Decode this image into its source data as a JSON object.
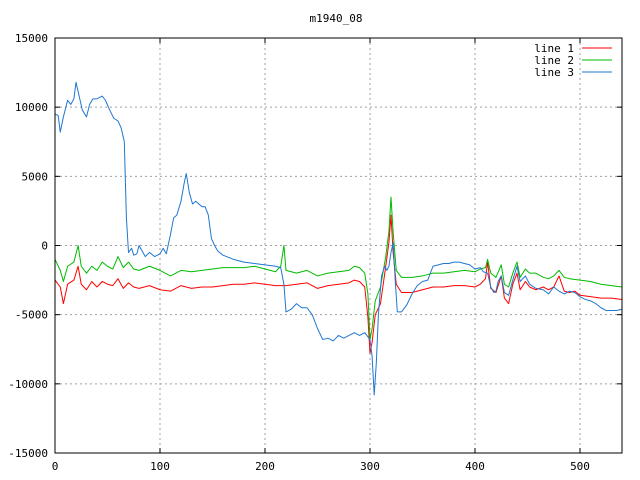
{
  "chart_data": {
    "type": "line",
    "title": "m1940_08",
    "xlabel": "",
    "ylabel": "",
    "xlim": [
      0,
      540
    ],
    "ylim": [
      -15000,
      15000
    ],
    "xticks": [
      0,
      100,
      200,
      300,
      400,
      500
    ],
    "yticks": [
      -15000,
      -10000,
      -5000,
      0,
      5000,
      10000,
      15000
    ],
    "grid": true,
    "legend_position": "top-right",
    "series": [
      {
        "name": "line 1",
        "color": "#ff0000",
        "points": [
          [
            0,
            -2500
          ],
          [
            5,
            -3000
          ],
          [
            8,
            -4200
          ],
          [
            12,
            -2800
          ],
          [
            18,
            -2500
          ],
          [
            22,
            -1500
          ],
          [
            25,
            -2800
          ],
          [
            30,
            -3200
          ],
          [
            35,
            -2600
          ],
          [
            40,
            -3000
          ],
          [
            45,
            -2600
          ],
          [
            50,
            -2800
          ],
          [
            55,
            -2900
          ],
          [
            60,
            -2400
          ],
          [
            65,
            -3100
          ],
          [
            70,
            -2700
          ],
          [
            75,
            -3000
          ],
          [
            80,
            -3100
          ],
          [
            90,
            -2900
          ],
          [
            100,
            -3200
          ],
          [
            110,
            -3300
          ],
          [
            120,
            -2900
          ],
          [
            130,
            -3100
          ],
          [
            140,
            -3000
          ],
          [
            150,
            -3000
          ],
          [
            160,
            -2900
          ],
          [
            170,
            -2800
          ],
          [
            180,
            -2800
          ],
          [
            190,
            -2700
          ],
          [
            200,
            -2800
          ],
          [
            210,
            -2900
          ],
          [
            220,
            -2900
          ],
          [
            230,
            -2800
          ],
          [
            240,
            -2700
          ],
          [
            250,
            -3100
          ],
          [
            260,
            -2900
          ],
          [
            270,
            -2800
          ],
          [
            280,
            -2700
          ],
          [
            285,
            -2500
          ],
          [
            290,
            -2600
          ],
          [
            295,
            -3000
          ],
          [
            298,
            -5200
          ],
          [
            300,
            -7800
          ],
          [
            302,
            -7000
          ],
          [
            305,
            -5000
          ],
          [
            310,
            -4200
          ],
          [
            315,
            -1500
          ],
          [
            318,
            200
          ],
          [
            320,
            2200
          ],
          [
            322,
            -500
          ],
          [
            325,
            -2800
          ],
          [
            330,
            -3400
          ],
          [
            340,
            -3400
          ],
          [
            350,
            -3200
          ],
          [
            360,
            -3000
          ],
          [
            370,
            -3000
          ],
          [
            380,
            -2900
          ],
          [
            390,
            -2900
          ],
          [
            400,
            -3000
          ],
          [
            405,
            -2800
          ],
          [
            410,
            -2400
          ],
          [
            412,
            -1200
          ],
          [
            415,
            -3100
          ],
          [
            420,
            -3400
          ],
          [
            425,
            -2200
          ],
          [
            428,
            -3800
          ],
          [
            432,
            -4200
          ],
          [
            436,
            -2800
          ],
          [
            440,
            -2000
          ],
          [
            443,
            -3200
          ],
          [
            448,
            -2600
          ],
          [
            452,
            -3000
          ],
          [
            458,
            -3200
          ],
          [
            465,
            -3000
          ],
          [
            470,
            -3200
          ],
          [
            475,
            -3000
          ],
          [
            480,
            -2200
          ],
          [
            485,
            -3300
          ],
          [
            490,
            -3400
          ],
          [
            495,
            -3300
          ],
          [
            500,
            -3600
          ],
          [
            510,
            -3700
          ],
          [
            520,
            -3800
          ],
          [
            530,
            -3800
          ],
          [
            540,
            -3900
          ]
        ]
      },
      {
        "name": "line 2",
        "color": "#00bb00",
        "points": [
          [
            0,
            -1000
          ],
          [
            5,
            -1800
          ],
          [
            8,
            -2600
          ],
          [
            12,
            -1500
          ],
          [
            18,
            -1200
          ],
          [
            22,
            0
          ],
          [
            25,
            -1500
          ],
          [
            30,
            -2000
          ],
          [
            35,
            -1500
          ],
          [
            40,
            -1800
          ],
          [
            45,
            -1200
          ],
          [
            50,
            -1500
          ],
          [
            55,
            -1700
          ],
          [
            60,
            -800
          ],
          [
            65,
            -1600
          ],
          [
            70,
            -1200
          ],
          [
            75,
            -1700
          ],
          [
            80,
            -1800
          ],
          [
            90,
            -1500
          ],
          [
            100,
            -1800
          ],
          [
            110,
            -2200
          ],
          [
            120,
            -1800
          ],
          [
            130,
            -1900
          ],
          [
            140,
            -1800
          ],
          [
            150,
            -1700
          ],
          [
            160,
            -1600
          ],
          [
            170,
            -1600
          ],
          [
            180,
            -1600
          ],
          [
            190,
            -1500
          ],
          [
            200,
            -1700
          ],
          [
            210,
            -1900
          ],
          [
            215,
            -1500
          ],
          [
            218,
            0
          ],
          [
            220,
            -1800
          ],
          [
            230,
            -2000
          ],
          [
            240,
            -1800
          ],
          [
            250,
            -2200
          ],
          [
            260,
            -2000
          ],
          [
            270,
            -1900
          ],
          [
            280,
            -1800
          ],
          [
            285,
            -1500
          ],
          [
            290,
            -1600
          ],
          [
            295,
            -2000
          ],
          [
            298,
            -3500
          ],
          [
            300,
            -6800
          ],
          [
            302,
            -6000
          ],
          [
            305,
            -4000
          ],
          [
            310,
            -3000
          ],
          [
            315,
            -800
          ],
          [
            318,
            1000
          ],
          [
            320,
            3500
          ],
          [
            322,
            1000
          ],
          [
            325,
            -1800
          ],
          [
            330,
            -2300
          ],
          [
            340,
            -2300
          ],
          [
            350,
            -2200
          ],
          [
            360,
            -2000
          ],
          [
            370,
            -2000
          ],
          [
            380,
            -1900
          ],
          [
            390,
            -1800
          ],
          [
            400,
            -1900
          ],
          [
            405,
            -1700
          ],
          [
            410,
            -1600
          ],
          [
            412,
            -1000
          ],
          [
            415,
            -2000
          ],
          [
            420,
            -2300
          ],
          [
            425,
            -1400
          ],
          [
            428,
            -2800
          ],
          [
            432,
            -3000
          ],
          [
            436,
            -2000
          ],
          [
            440,
            -1200
          ],
          [
            443,
            -2300
          ],
          [
            448,
            -1700
          ],
          [
            452,
            -2000
          ],
          [
            458,
            -2000
          ],
          [
            465,
            -2300
          ],
          [
            470,
            -2400
          ],
          [
            475,
            -2200
          ],
          [
            480,
            -1800
          ],
          [
            485,
            -2300
          ],
          [
            490,
            -2400
          ],
          [
            500,
            -2500
          ],
          [
            510,
            -2600
          ],
          [
            520,
            -2800
          ],
          [
            530,
            -2900
          ],
          [
            540,
            -3000
          ]
        ]
      },
      {
        "name": "line 3",
        "color": "#1f77d0",
        "points": [
          [
            0,
            9500
          ],
          [
            3,
            9400
          ],
          [
            5,
            8200
          ],
          [
            8,
            9300
          ],
          [
            12,
            10500
          ],
          [
            15,
            10200
          ],
          [
            18,
            10600
          ],
          [
            20,
            11800
          ],
          [
            23,
            10800
          ],
          [
            26,
            9800
          ],
          [
            30,
            9300
          ],
          [
            33,
            10200
          ],
          [
            36,
            10600
          ],
          [
            40,
            10600
          ],
          [
            45,
            10800
          ],
          [
            48,
            10500
          ],
          [
            52,
            9800
          ],
          [
            56,
            9200
          ],
          [
            60,
            9000
          ],
          [
            63,
            8500
          ],
          [
            66,
            7500
          ],
          [
            68,
            2000
          ],
          [
            70,
            -500
          ],
          [
            73,
            -200
          ],
          [
            75,
            -700
          ],
          [
            78,
            -600
          ],
          [
            80,
            0
          ],
          [
            83,
            -400
          ],
          [
            86,
            -800
          ],
          [
            90,
            -500
          ],
          [
            95,
            -800
          ],
          [
            100,
            -600
          ],
          [
            103,
            -200
          ],
          [
            106,
            -600
          ],
          [
            110,
            800
          ],
          [
            113,
            2000
          ],
          [
            116,
            2200
          ],
          [
            120,
            3200
          ],
          [
            123,
            4500
          ],
          [
            125,
            5200
          ],
          [
            128,
            3800
          ],
          [
            131,
            3000
          ],
          [
            134,
            3200
          ],
          [
            137,
            3000
          ],
          [
            140,
            2800
          ],
          [
            143,
            2800
          ],
          [
            146,
            2200
          ],
          [
            149,
            500
          ],
          [
            152,
            0
          ],
          [
            155,
            -400
          ],
          [
            160,
            -700
          ],
          [
            170,
            -1000
          ],
          [
            180,
            -1200
          ],
          [
            190,
            -1300
          ],
          [
            200,
            -1400
          ],
          [
            210,
            -1500
          ],
          [
            215,
            -1600
          ],
          [
            218,
            -2800
          ],
          [
            220,
            -4800
          ],
          [
            225,
            -4600
          ],
          [
            230,
            -4200
          ],
          [
            235,
            -4500
          ],
          [
            240,
            -4500
          ],
          [
            245,
            -5000
          ],
          [
            250,
            -6000
          ],
          [
            255,
            -6800
          ],
          [
            260,
            -6700
          ],
          [
            265,
            -6900
          ],
          [
            270,
            -6500
          ],
          [
            275,
            -6700
          ],
          [
            280,
            -6500
          ],
          [
            285,
            -6300
          ],
          [
            290,
            -6500
          ],
          [
            295,
            -6300
          ],
          [
            300,
            -6800
          ],
          [
            302,
            -8000
          ],
          [
            304,
            -10800
          ],
          [
            306,
            -8500
          ],
          [
            308,
            -5000
          ],
          [
            311,
            -2200
          ],
          [
            314,
            -1500
          ],
          [
            316,
            -1800
          ],
          [
            318,
            -1500
          ],
          [
            320,
            -500
          ],
          [
            322,
            200
          ],
          [
            324,
            -2500
          ],
          [
            326,
            -4800
          ],
          [
            330,
            -4800
          ],
          [
            335,
            -4300
          ],
          [
            340,
            -3500
          ],
          [
            345,
            -2900
          ],
          [
            350,
            -2600
          ],
          [
            355,
            -2500
          ],
          [
            360,
            -1500
          ],
          [
            365,
            -1400
          ],
          [
            370,
            -1300
          ],
          [
            375,
            -1300
          ],
          [
            380,
            -1200
          ],
          [
            385,
            -1200
          ],
          [
            390,
            -1300
          ],
          [
            395,
            -1400
          ],
          [
            400,
            -1700
          ],
          [
            405,
            -1600
          ],
          [
            408,
            -1900
          ],
          [
            412,
            -2000
          ],
          [
            415,
            -3000
          ],
          [
            418,
            -3400
          ],
          [
            420,
            -3300
          ],
          [
            422,
            -2600
          ],
          [
            425,
            -2200
          ],
          [
            428,
            -3400
          ],
          [
            432,
            -3600
          ],
          [
            436,
            -2500
          ],
          [
            440,
            -1500
          ],
          [
            443,
            -2600
          ],
          [
            448,
            -2200
          ],
          [
            452,
            -2800
          ],
          [
            458,
            -3100
          ],
          [
            465,
            -3200
          ],
          [
            470,
            -3500
          ],
          [
            475,
            -3000
          ],
          [
            480,
            -3300
          ],
          [
            485,
            -3500
          ],
          [
            490,
            -3300
          ],
          [
            495,
            -3400
          ],
          [
            500,
            -3700
          ],
          [
            505,
            -3900
          ],
          [
            510,
            -4000
          ],
          [
            515,
            -4200
          ],
          [
            520,
            -4500
          ],
          [
            525,
            -4700
          ],
          [
            530,
            -4700
          ],
          [
            535,
            -4700
          ],
          [
            540,
            -4600
          ]
        ]
      }
    ]
  }
}
